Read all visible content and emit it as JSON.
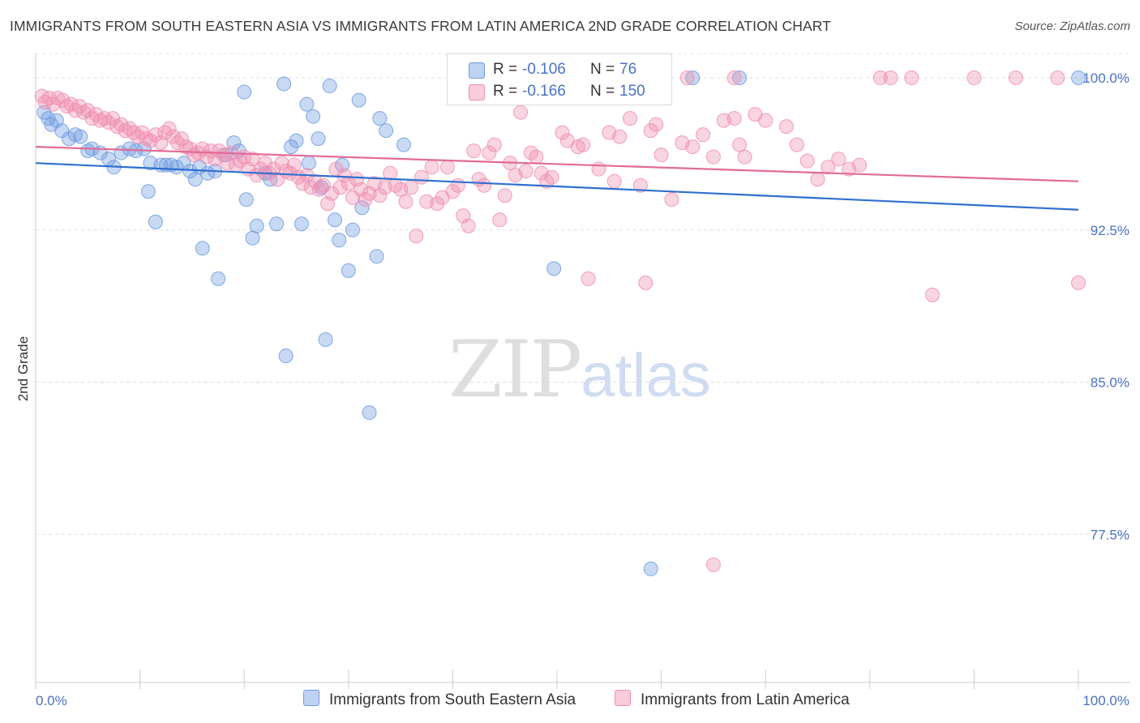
{
  "title": "IMMIGRANTS FROM SOUTH EASTERN ASIA VS IMMIGRANTS FROM LATIN AMERICA 2ND GRADE CORRELATION CHART",
  "source": "Source: ZipAtlas.com",
  "watermark": {
    "zip": "ZIP",
    "atlas": "atlas"
  },
  "legend": {
    "r_label": "R =",
    "n_label": "N =",
    "rows": [
      {
        "r": "-0.106",
        "n": "76",
        "color": "#6f9be0"
      },
      {
        "r": "-0.166",
        "n": "150",
        "color": "#f08eb0"
      }
    ]
  },
  "bottom_legend": [
    {
      "label": "Immigrants from South Eastern Asia",
      "color": "#6f9be0"
    },
    {
      "label": "Immigrants from Latin America",
      "color": "#f08eb0"
    }
  ],
  "chart_data": {
    "type": "scatter",
    "ylabel": "2nd Grade",
    "xlim": [
      0,
      100
    ],
    "ylim": [
      70.2,
      101.2
    ],
    "x_tick_labels": [
      "0.0%",
      "100.0%"
    ],
    "y_ticks": [
      77.5,
      85.0,
      92.5,
      100.0
    ],
    "y_tick_labels": [
      "77.5%",
      "85.0%",
      "92.5%",
      "100.0%"
    ],
    "grid": true,
    "series": [
      {
        "name": "Immigrants from South Eastern Asia",
        "color": "#6f9be0",
        "trend": [
          [
            0,
            95.8
          ],
          [
            100,
            93.5
          ]
        ],
        "points": [
          [
            0.8,
            98.3
          ],
          [
            1.2,
            98.0
          ],
          [
            1.5,
            97.7
          ],
          [
            2.0,
            97.9
          ],
          [
            2.5,
            97.4
          ],
          [
            3.2,
            97.0
          ],
          [
            3.8,
            97.2
          ],
          [
            4.3,
            97.1
          ],
          [
            5.0,
            96.4
          ],
          [
            5.4,
            96.5
          ],
          [
            6.2,
            96.3
          ],
          [
            7.0,
            96.0
          ],
          [
            7.5,
            95.6
          ],
          [
            8.2,
            96.3
          ],
          [
            9.0,
            96.5
          ],
          [
            9.6,
            96.4
          ],
          [
            10.4,
            96.5
          ],
          [
            10.8,
            94.4
          ],
          [
            11.0,
            95.8
          ],
          [
            11.5,
            92.9
          ],
          [
            12.0,
            95.7
          ],
          [
            12.5,
            95.7
          ],
          [
            13.0,
            95.7
          ],
          [
            13.5,
            95.6
          ],
          [
            14.2,
            95.8
          ],
          [
            14.8,
            95.4
          ],
          [
            15.3,
            95.0
          ],
          [
            15.7,
            95.6
          ],
          [
            16.0,
            91.6
          ],
          [
            16.5,
            95.3
          ],
          [
            17.2,
            95.4
          ],
          [
            17.5,
            90.1
          ],
          [
            18.2,
            96.2
          ],
          [
            19.0,
            96.8
          ],
          [
            19.5,
            96.4
          ],
          [
            20.0,
            99.3
          ],
          [
            20.2,
            94.0
          ],
          [
            20.8,
            92.1
          ],
          [
            21.2,
            92.7
          ],
          [
            22.0,
            95.3
          ],
          [
            22.5,
            95.0
          ],
          [
            23.1,
            92.8
          ],
          [
            23.8,
            99.7
          ],
          [
            24.0,
            86.3
          ],
          [
            24.5,
            96.6
          ],
          [
            25.0,
            96.9
          ],
          [
            25.5,
            92.8
          ],
          [
            26.0,
            98.7
          ],
          [
            26.2,
            95.8
          ],
          [
            26.6,
            98.1
          ],
          [
            27.1,
            97.0
          ],
          [
            27.4,
            94.6
          ],
          [
            27.8,
            87.1
          ],
          [
            28.2,
            99.6
          ],
          [
            28.7,
            93.0
          ],
          [
            29.1,
            92.0
          ],
          [
            29.4,
            95.7
          ],
          [
            30.0,
            90.5
          ],
          [
            30.4,
            92.5
          ],
          [
            31.0,
            98.9
          ],
          [
            31.3,
            93.6
          ],
          [
            32.0,
            83.5
          ],
          [
            32.7,
            91.2
          ],
          [
            33.0,
            98.0
          ],
          [
            33.6,
            97.4
          ],
          [
            35.3,
            96.7
          ],
          [
            49.7,
            90.6
          ],
          [
            59.0,
            75.8
          ],
          [
            63.0,
            100.0
          ],
          [
            67.5,
            100.0
          ],
          [
            100.0,
            100.0
          ]
        ]
      },
      {
        "name": "Immigrants from Latin America",
        "color": "#f08eb0",
        "trend": [
          [
            0,
            96.6
          ],
          [
            100,
            94.9
          ]
        ],
        "points": [
          [
            0.6,
            99.1
          ],
          [
            0.9,
            98.8
          ],
          [
            1.3,
            99.0
          ],
          [
            1.7,
            98.7
          ],
          [
            2.1,
            99.0
          ],
          [
            2.6,
            98.9
          ],
          [
            3.0,
            98.6
          ],
          [
            3.4,
            98.7
          ],
          [
            3.8,
            98.4
          ],
          [
            4.2,
            98.6
          ],
          [
            4.6,
            98.3
          ],
          [
            5.0,
            98.4
          ],
          [
            5.4,
            98.0
          ],
          [
            5.8,
            98.2
          ],
          [
            6.2,
            97.9
          ],
          [
            6.6,
            98.0
          ],
          [
            7.0,
            97.8
          ],
          [
            7.4,
            98.0
          ],
          [
            7.8,
            97.6
          ],
          [
            8.2,
            97.7
          ],
          [
            8.6,
            97.4
          ],
          [
            9.0,
            97.5
          ],
          [
            9.4,
            97.3
          ],
          [
            9.8,
            97.1
          ],
          [
            10.2,
            97.3
          ],
          [
            10.6,
            97.0
          ],
          [
            11.0,
            96.9
          ],
          [
            11.5,
            97.2
          ],
          [
            12.0,
            96.8
          ],
          [
            12.4,
            97.3
          ],
          [
            12.8,
            97.5
          ],
          [
            13.2,
            97.1
          ],
          [
            13.6,
            96.8
          ],
          [
            14.0,
            97.0
          ],
          [
            14.4,
            96.6
          ],
          [
            14.8,
            96.5
          ],
          [
            15.2,
            96.2
          ],
          [
            15.6,
            96.3
          ],
          [
            16.0,
            96.5
          ],
          [
            16.4,
            96.1
          ],
          [
            16.8,
            96.4
          ],
          [
            17.2,
            96.0
          ],
          [
            17.6,
            96.4
          ],
          [
            18.0,
            96.2
          ],
          [
            18.4,
            95.8
          ],
          [
            18.8,
            96.3
          ],
          [
            19.2,
            95.7
          ],
          [
            19.6,
            95.9
          ],
          [
            20.0,
            96.1
          ],
          [
            20.4,
            95.5
          ],
          [
            20.8,
            96.0
          ],
          [
            21.2,
            95.2
          ],
          [
            21.6,
            95.5
          ],
          [
            22.0,
            95.8
          ],
          [
            22.4,
            95.3
          ],
          [
            22.8,
            95.5
          ],
          [
            23.2,
            95.0
          ],
          [
            23.6,
            95.8
          ],
          [
            24.0,
            95.4
          ],
          [
            24.4,
            95.3
          ],
          [
            24.8,
            95.7
          ],
          [
            25.2,
            95.1
          ],
          [
            25.6,
            94.8
          ],
          [
            26.0,
            95.2
          ],
          [
            26.4,
            94.6
          ],
          [
            26.8,
            94.9
          ],
          [
            27.2,
            94.5
          ],
          [
            27.6,
            94.7
          ],
          [
            28.0,
            93.8
          ],
          [
            28.4,
            94.3
          ],
          [
            28.8,
            95.5
          ],
          [
            29.2,
            94.6
          ],
          [
            29.6,
            95.2
          ],
          [
            30.0,
            94.8
          ],
          [
            30.4,
            94.1
          ],
          [
            30.8,
            95.0
          ],
          [
            31.2,
            94.5
          ],
          [
            31.6,
            94.0
          ],
          [
            32.0,
            94.3
          ],
          [
            32.5,
            94.8
          ],
          [
            33.0,
            94.2
          ],
          [
            33.5,
            94.6
          ],
          [
            34.0,
            95.3
          ],
          [
            34.5,
            94.7
          ],
          [
            35.0,
            94.5
          ],
          [
            35.5,
            93.9
          ],
          [
            36.0,
            94.6
          ],
          [
            36.5,
            92.2
          ],
          [
            37.0,
            95.1
          ],
          [
            37.5,
            93.9
          ],
          [
            38.0,
            95.6
          ],
          [
            38.5,
            93.8
          ],
          [
            39.0,
            94.1
          ],
          [
            39.5,
            95.6
          ],
          [
            40.0,
            94.4
          ],
          [
            40.5,
            94.7
          ],
          [
            41.0,
            93.2
          ],
          [
            41.5,
            92.7
          ],
          [
            42.0,
            96.4
          ],
          [
            42.5,
            95.0
          ],
          [
            43.0,
            94.7
          ],
          [
            43.5,
            96.3
          ],
          [
            44.0,
            96.7
          ],
          [
            44.5,
            93.0
          ],
          [
            45.0,
            94.2
          ],
          [
            45.5,
            95.8
          ],
          [
            46.0,
            95.2
          ],
          [
            46.5,
            98.3
          ],
          [
            47.0,
            95.4
          ],
          [
            47.5,
            96.3
          ],
          [
            48.0,
            96.1
          ],
          [
            48.5,
            95.3
          ],
          [
            49.0,
            94.9
          ],
          [
            49.5,
            95.1
          ],
          [
            50.5,
            97.3
          ],
          [
            51.0,
            96.9
          ],
          [
            52.0,
            96.6
          ],
          [
            52.5,
            96.7
          ],
          [
            53.0,
            90.1
          ],
          [
            54.0,
            95.5
          ],
          [
            55.0,
            97.3
          ],
          [
            55.5,
            94.9
          ],
          [
            56.0,
            97.1
          ],
          [
            57.0,
            98.0
          ],
          [
            58.0,
            94.7
          ],
          [
            58.5,
            89.9
          ],
          [
            59.0,
            97.4
          ],
          [
            59.5,
            97.7
          ],
          [
            60.0,
            96.2
          ],
          [
            61.0,
            94.0
          ],
          [
            62.0,
            96.8
          ],
          [
            63.0,
            96.6
          ],
          [
            64.0,
            97.2
          ],
          [
            65.0,
            96.1
          ],
          [
            66.0,
            97.9
          ],
          [
            67.0,
            98.0
          ],
          [
            67.5,
            96.7
          ],
          [
            68.0,
            96.1
          ],
          [
            69.0,
            98.2
          ],
          [
            70.0,
            97.9
          ],
          [
            72.0,
            97.6
          ],
          [
            73.0,
            96.7
          ],
          [
            74.0,
            95.9
          ],
          [
            75.0,
            95.0
          ],
          [
            76.0,
            95.6
          ],
          [
            77.0,
            96.0
          ],
          [
            78.0,
            95.5
          ],
          [
            79.0,
            95.7
          ],
          [
            81.0,
            100.0
          ],
          [
            82.0,
            100.0
          ],
          [
            84.0,
            100.0
          ],
          [
            86.0,
            89.3
          ],
          [
            90.0,
            100.0
          ],
          [
            94.0,
            100.0
          ],
          [
            98.0,
            100.0
          ],
          [
            100.0,
            89.9
          ],
          [
            62.5,
            100.0
          ],
          [
            67.0,
            100.0
          ],
          [
            65.0,
            76.0
          ]
        ]
      }
    ]
  }
}
